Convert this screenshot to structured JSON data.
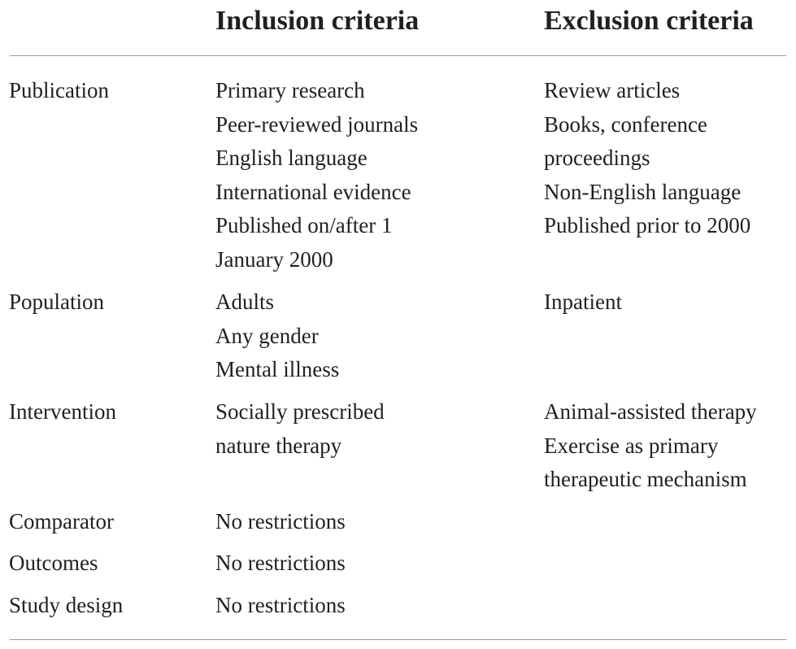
{
  "header": {
    "blank": "",
    "inclusion": "Inclusion criteria",
    "exclusion": "Exclusion criteria"
  },
  "rows": [
    {
      "label": "Publication",
      "inclusion": [
        "Primary research",
        "Peer-reviewed journals",
        "English language",
        "International evidence",
        "Published on/after 1",
        "January 2000"
      ],
      "exclusion": [
        "Review articles",
        "Books, conference",
        "proceedings",
        "Non-English language",
        "Published prior to 2000"
      ]
    },
    {
      "label": "Population",
      "inclusion": [
        "Adults",
        "Any gender",
        "Mental illness"
      ],
      "exclusion": [
        "Inpatient"
      ]
    },
    {
      "label": "Intervention",
      "inclusion": [
        "Socially prescribed",
        "nature therapy"
      ],
      "exclusion": [
        "Animal-assisted therapy",
        "Exercise as primary",
        "therapeutic mechanism"
      ]
    },
    {
      "label": "Comparator",
      "inclusion": [
        "No restrictions"
      ],
      "exclusion": []
    },
    {
      "label": "Outcomes",
      "inclusion": [
        "No restrictions"
      ],
      "exclusion": []
    },
    {
      "label": "Study design",
      "inclusion": [
        "No restrictions"
      ],
      "exclusion": []
    }
  ]
}
